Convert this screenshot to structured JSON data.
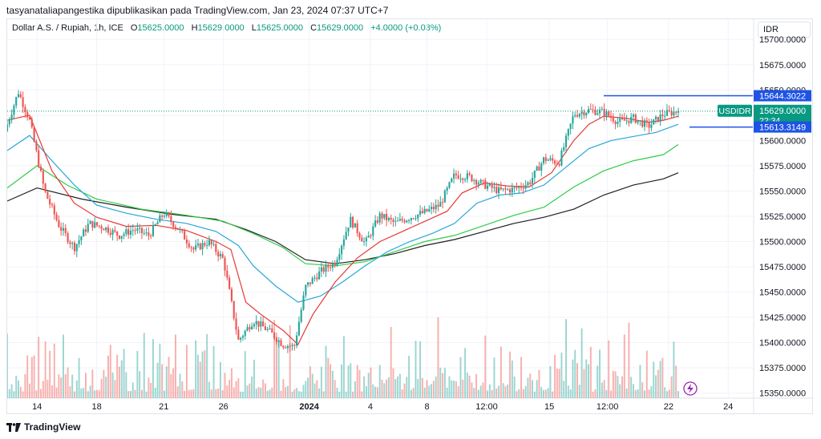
{
  "header": {
    "attribution": "tasyanataliapangestika dipublikasikan pada TradingView.com, Jan 23, 2024 07:37 UTC+7"
  },
  "legend": {
    "symbol": "Dollar A.S. / Rupiah, 1h, ICE",
    "o_label": "O",
    "o": "15625.0000",
    "h_label": "H",
    "h": "15629.0000",
    "l_label": "L",
    "l": "15625.0000",
    "c_label": "C",
    "c": "15629.0000",
    "change": "+4.0000 (+0.03%)"
  },
  "currency": "IDR",
  "footer": {
    "brand": "TradingView"
  },
  "colors": {
    "up": "#26a69a",
    "down": "#ef5350",
    "ema_short": "#e53935",
    "ema_mid": "#26a7d8",
    "ema_long": "#2fcc47",
    "ema_longest": "#1f1f1f",
    "line_level": "#1e53e5",
    "price_label": "#089981",
    "grid": "#f0f3fa",
    "text": "#131722"
  },
  "icons": {
    "lightning": "lightning-icon"
  },
  "chart_data": {
    "type": "candlestick",
    "symbol": "USDIDR",
    "ylim": [
      15345,
      15720
    ],
    "y_ticks": [
      15350,
      15375,
      15400,
      15425,
      15450,
      15475,
      15500,
      15525,
      15550,
      15575,
      15600,
      15625,
      15650,
      15675,
      15700
    ],
    "y_tick_labels": [
      "15350.0000",
      "15375.0000",
      "15400.0000",
      "15425.0000",
      "15450.0000",
      "15475.0000",
      "15500.0000",
      "15525.0000",
      "15550.0000",
      "15575.0000",
      "15600.0000",
      "15625.0000",
      "15650.0000",
      "15675.0000",
      "15700.0000"
    ],
    "x_ticks": [
      {
        "label": "14",
        "t": 0.04
      },
      {
        "label": "18",
        "t": 0.12
      },
      {
        "label": "21",
        "t": 0.21
      },
      {
        "label": "26",
        "t": 0.29
      },
      {
        "label": "2024",
        "t": 0.405
      },
      {
        "label": "4",
        "t": 0.487
      },
      {
        "label": "8",
        "t": 0.563
      },
      {
        "label": "12:00",
        "t": 0.643
      },
      {
        "label": "15",
        "t": 0.727
      },
      {
        "label": "12:00",
        "t": 0.805
      },
      {
        "label": "22",
        "t": 0.887
      },
      {
        "label": "24",
        "t": 0.967
      }
    ],
    "price_labels": [
      {
        "text": "15644.3022",
        "value": 15644.3022,
        "kind": "level"
      },
      {
        "symbol": "USDIDR",
        "text": "15629.0000",
        "countdown": "22:34",
        "value": 15629,
        "kind": "last"
      },
      {
        "text": "15613.3149",
        "value": 15613.3149,
        "kind": "level"
      }
    ],
    "horizontal_levels": [
      {
        "value": 15644.3022,
        "t_start": 0.8
      },
      {
        "value": 15613.3149,
        "t_start": 0.915
      }
    ],
    "last_price_line": 15629,
    "ohlc_anchors": [
      [
        0.0,
        15609,
        15618,
        15601,
        15616
      ],
      [
        0.015,
        15616,
        15652,
        15612,
        15648
      ],
      [
        0.03,
        15648,
        15660,
        15616,
        15620
      ],
      [
        0.05,
        15620,
        15624,
        15545,
        15550
      ],
      [
        0.07,
        15550,
        15556,
        15505,
        15515
      ],
      [
        0.09,
        15515,
        15530,
        15482,
        15494
      ],
      [
        0.11,
        15494,
        15523,
        15486,
        15518
      ],
      [
        0.13,
        15518,
        15536,
        15508,
        15514
      ],
      [
        0.15,
        15514,
        15527,
        15498,
        15506
      ],
      [
        0.17,
        15506,
        15524,
        15497,
        15512
      ],
      [
        0.19,
        15512,
        15530,
        15503,
        15506
      ],
      [
        0.21,
        15506,
        15534,
        15502,
        15528
      ],
      [
        0.23,
        15528,
        15532,
        15506,
        15512
      ],
      [
        0.25,
        15512,
        15525,
        15486,
        15492
      ],
      [
        0.27,
        15492,
        15516,
        15480,
        15500
      ],
      [
        0.29,
        15500,
        15508,
        15476,
        15482
      ],
      [
        0.31,
        15482,
        15490,
        15390,
        15402
      ],
      [
        0.33,
        15402,
        15432,
        15389,
        15422
      ],
      [
        0.35,
        15422,
        15450,
        15405,
        15412
      ],
      [
        0.37,
        15412,
        15428,
        15392,
        15398
      ],
      [
        0.385,
        15398,
        15410,
        15391,
        15396
      ],
      [
        0.4,
        15396,
        15465,
        15392,
        15455
      ],
      [
        0.42,
        15455,
        15480,
        15446,
        15470
      ],
      [
        0.44,
        15470,
        15494,
        15462,
        15480
      ],
      [
        0.46,
        15480,
        15535,
        15468,
        15522
      ],
      [
        0.48,
        15522,
        15542,
        15486,
        15498
      ],
      [
        0.5,
        15498,
        15530,
        15490,
        15526
      ],
      [
        0.52,
        15526,
        15540,
        15512,
        15518
      ],
      [
        0.54,
        15518,
        15545,
        15508,
        15524
      ],
      [
        0.56,
        15524,
        15538,
        15512,
        15529
      ],
      [
        0.58,
        15529,
        15545,
        15522,
        15536
      ],
      [
        0.6,
        15536,
        15582,
        15530,
        15566
      ],
      [
        0.62,
        15566,
        15580,
        15552,
        15564
      ],
      [
        0.64,
        15564,
        15574,
        15546,
        15556
      ],
      [
        0.66,
        15556,
        15566,
        15542,
        15550
      ],
      [
        0.68,
        15550,
        15560,
        15538,
        15552
      ],
      [
        0.7,
        15552,
        15562,
        15544,
        15558
      ],
      [
        0.72,
        15558,
        15586,
        15552,
        15582
      ],
      [
        0.74,
        15582,
        15592,
        15568,
        15578
      ],
      [
        0.76,
        15578,
        15630,
        15574,
        15626
      ],
      [
        0.78,
        15626,
        15645,
        15616,
        15630
      ],
      [
        0.8,
        15630,
        15640,
        15622,
        15628
      ],
      [
        0.82,
        15628,
        15634,
        15608,
        15618
      ],
      [
        0.84,
        15618,
        15628,
        15602,
        15622
      ],
      [
        0.86,
        15622,
        15630,
        15610,
        15614
      ],
      [
        0.88,
        15614,
        15628,
        15600,
        15626
      ],
      [
        0.9,
        15626,
        15632,
        15622,
        15629
      ]
    ],
    "ema_short": [
      [
        0.0,
        15620
      ],
      [
        0.03,
        15625
      ],
      [
        0.06,
        15570
      ],
      [
        0.09,
        15538
      ],
      [
        0.12,
        15524
      ],
      [
        0.16,
        15515
      ],
      [
        0.2,
        15516
      ],
      [
        0.24,
        15511
      ],
      [
        0.28,
        15500
      ],
      [
        0.3,
        15492
      ],
      [
        0.32,
        15440
      ],
      [
        0.34,
        15428
      ],
      [
        0.37,
        15412
      ],
      [
        0.39,
        15398
      ],
      [
        0.41,
        15428
      ],
      [
        0.44,
        15460
      ],
      [
        0.47,
        15484
      ],
      [
        0.5,
        15500
      ],
      [
        0.53,
        15510
      ],
      [
        0.56,
        15520
      ],
      [
        0.59,
        15530
      ],
      [
        0.61,
        15548
      ],
      [
        0.64,
        15558
      ],
      [
        0.67,
        15555
      ],
      [
        0.7,
        15554
      ],
      [
        0.73,
        15568
      ],
      [
        0.76,
        15600
      ],
      [
        0.78,
        15616
      ],
      [
        0.8,
        15624
      ],
      [
        0.83,
        15622
      ],
      [
        0.86,
        15618
      ],
      [
        0.88,
        15620
      ],
      [
        0.9,
        15624
      ]
    ],
    "ema_mid": [
      [
        0.0,
        15590
      ],
      [
        0.03,
        15605
      ],
      [
        0.06,
        15580
      ],
      [
        0.09,
        15556
      ],
      [
        0.12,
        15536
      ],
      [
        0.16,
        15528
      ],
      [
        0.2,
        15522
      ],
      [
        0.24,
        15518
      ],
      [
        0.28,
        15510
      ],
      [
        0.31,
        15496
      ],
      [
        0.33,
        15476
      ],
      [
        0.36,
        15456
      ],
      [
        0.39,
        15440
      ],
      [
        0.42,
        15446
      ],
      [
        0.45,
        15460
      ],
      [
        0.48,
        15476
      ],
      [
        0.51,
        15490
      ],
      [
        0.54,
        15500
      ],
      [
        0.57,
        15508
      ],
      [
        0.6,
        15518
      ],
      [
        0.63,
        15538
      ],
      [
        0.66,
        15546
      ],
      [
        0.69,
        15548
      ],
      [
        0.72,
        15556
      ],
      [
        0.75,
        15574
      ],
      [
        0.78,
        15592
      ],
      [
        0.81,
        15600
      ],
      [
        0.84,
        15604
      ],
      [
        0.87,
        15608
      ],
      [
        0.9,
        15616
      ]
    ],
    "ema_long": [
      [
        0.0,
        15553
      ],
      [
        0.04,
        15575
      ],
      [
        0.08,
        15556
      ],
      [
        0.12,
        15542
      ],
      [
        0.18,
        15532
      ],
      [
        0.24,
        15526
      ],
      [
        0.29,
        15520
      ],
      [
        0.33,
        15508
      ],
      [
        0.37,
        15494
      ],
      [
        0.4,
        15478
      ],
      [
        0.44,
        15476
      ],
      [
        0.48,
        15480
      ],
      [
        0.52,
        15490
      ],
      [
        0.56,
        15500
      ],
      [
        0.6,
        15506
      ],
      [
        0.64,
        15516
      ],
      [
        0.68,
        15526
      ],
      [
        0.72,
        15534
      ],
      [
        0.76,
        15554
      ],
      [
        0.8,
        15570
      ],
      [
        0.84,
        15580
      ],
      [
        0.88,
        15586
      ],
      [
        0.9,
        15596
      ]
    ],
    "ema_longest": [
      [
        0.0,
        15540
      ],
      [
        0.04,
        15553
      ],
      [
        0.1,
        15542
      ],
      [
        0.16,
        15534
      ],
      [
        0.22,
        15527
      ],
      [
        0.28,
        15522
      ],
      [
        0.32,
        15512
      ],
      [
        0.36,
        15500
      ],
      [
        0.4,
        15482
      ],
      [
        0.44,
        15478
      ],
      [
        0.48,
        15482
      ],
      [
        0.52,
        15488
      ],
      [
        0.56,
        15496
      ],
      [
        0.6,
        15502
      ],
      [
        0.64,
        15510
      ],
      [
        0.68,
        15518
      ],
      [
        0.72,
        15524
      ],
      [
        0.76,
        15532
      ],
      [
        0.8,
        15546
      ],
      [
        0.84,
        15556
      ],
      [
        0.88,
        15562
      ],
      [
        0.9,
        15568
      ]
    ]
  }
}
